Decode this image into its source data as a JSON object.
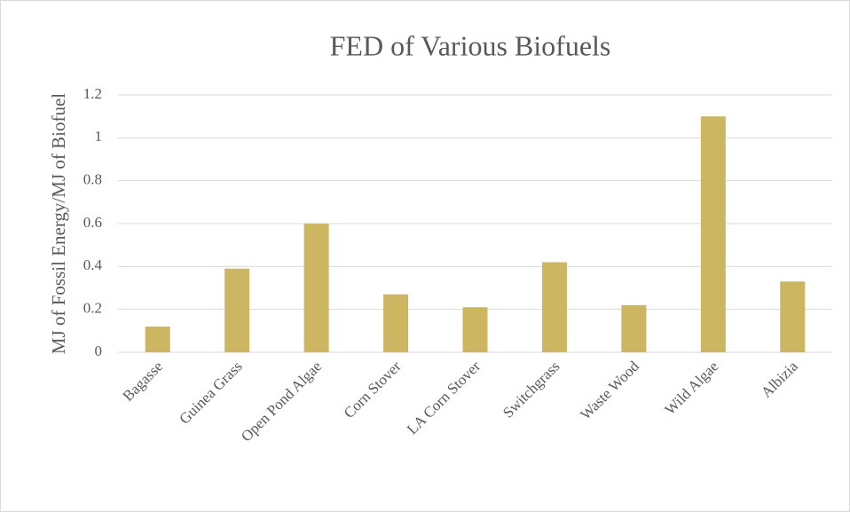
{
  "chart_data": {
    "type": "bar",
    "title": "FED of Various Biofuels",
    "y_label": "MJ of Fossil Energy/MJ of Biofuel",
    "categories": [
      "Bagasse",
      "Guinea Grass",
      "Open Pond Algae",
      "Corn Stover",
      "LA Corn Stover",
      "Switchgrass",
      "Waste Wood",
      "Wild Algae",
      "Albizia"
    ],
    "values": [
      0.12,
      0.39,
      0.6,
      0.27,
      0.21,
      0.42,
      0.22,
      1.1,
      0.33
    ],
    "color": "#cdb662",
    "ylim": [
      0,
      1.2
    ],
    "yticks": [
      0,
      0.2,
      0.4,
      0.6,
      0.8,
      1,
      1.2
    ],
    "grid": true
  }
}
